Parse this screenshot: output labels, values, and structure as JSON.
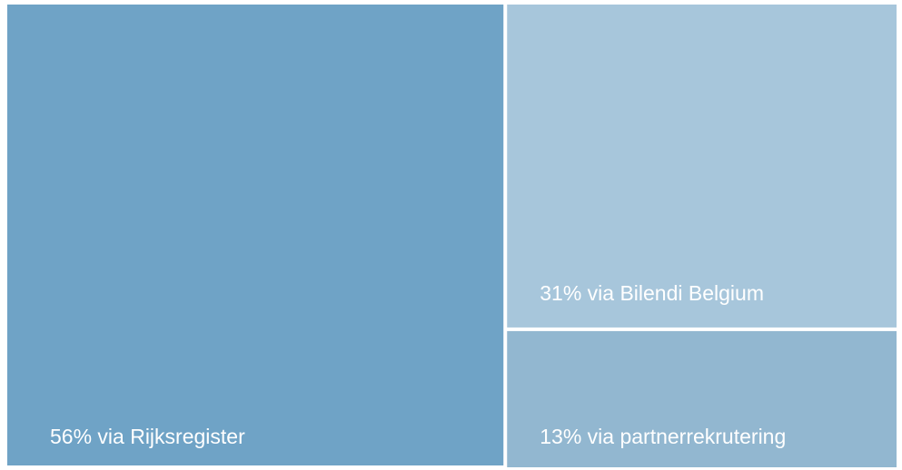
{
  "chart_data": {
    "type": "treemap",
    "values": [
      56,
      31,
      13
    ],
    "value_labels": [
      "56% via Rijksregister",
      "31% via Bilendi Belgium",
      "13% via partnerrekrutering"
    ],
    "colors": [
      "#6fa3c6",
      "#a7c6db",
      "#92b7d0"
    ]
  }
}
